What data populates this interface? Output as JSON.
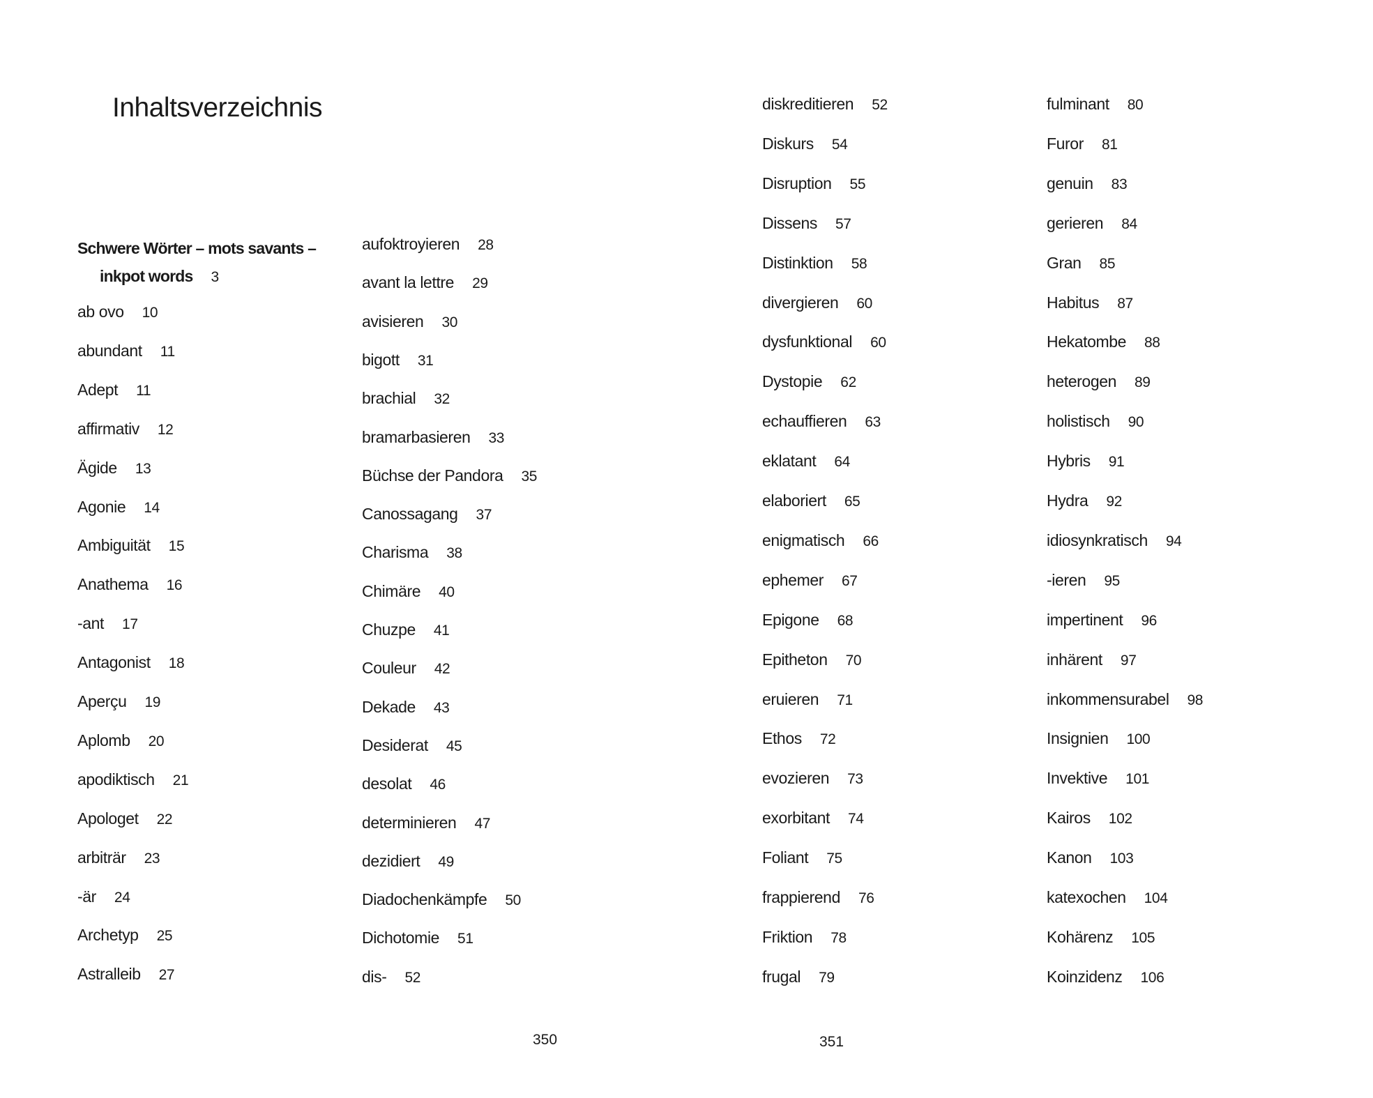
{
  "title": "Inhaltsverzeichnis",
  "heading": {
    "line1": "Schwere Wörter – mots savants –",
    "line2": "inkpot words",
    "page": "3"
  },
  "columns": [
    [
      [
        "ab ovo",
        "10"
      ],
      [
        "abundant",
        "11"
      ],
      [
        "Adept",
        "11"
      ],
      [
        "affirmativ",
        "12"
      ],
      [
        "Ägide",
        "13"
      ],
      [
        "Agonie",
        "14"
      ],
      [
        "Ambiguität",
        "15"
      ],
      [
        "Anathema",
        "16"
      ],
      [
        "-ant",
        "17"
      ],
      [
        "Antagonist",
        "18"
      ],
      [
        "Aperçu",
        "19"
      ],
      [
        "Aplomb",
        "20"
      ],
      [
        "apodiktisch",
        "21"
      ],
      [
        "Apologet",
        "22"
      ],
      [
        "arbiträr",
        "23"
      ],
      [
        "-är",
        "24"
      ],
      [
        "Archetyp",
        "25"
      ],
      [
        "Astralleib",
        "27"
      ]
    ],
    [
      [
        "aufoktroyieren",
        "28"
      ],
      [
        "avant la lettre",
        "29"
      ],
      [
        "avisieren",
        "30"
      ],
      [
        "bigott",
        "31"
      ],
      [
        "brachial",
        "32"
      ],
      [
        "bramarbasieren",
        "33"
      ],
      [
        "Büchse der Pandora",
        "35"
      ],
      [
        "Canossagang",
        "37"
      ],
      [
        "Charisma",
        "38"
      ],
      [
        "Chimäre",
        "40"
      ],
      [
        "Chuzpe",
        "41"
      ],
      [
        "Couleur",
        "42"
      ],
      [
        "Dekade",
        "43"
      ],
      [
        "Desiderat",
        "45"
      ],
      [
        "desolat",
        "46"
      ],
      [
        "determinieren",
        "47"
      ],
      [
        "dezidiert",
        "49"
      ],
      [
        "Diadochenkämpfe",
        "50"
      ],
      [
        "Dichotomie",
        "51"
      ],
      [
        "dis-",
        "52"
      ]
    ],
    [
      [
        "diskreditieren",
        "52"
      ],
      [
        "Diskurs",
        "54"
      ],
      [
        "Disruption",
        "55"
      ],
      [
        "Dissens",
        "57"
      ],
      [
        "Distinktion",
        "58"
      ],
      [
        "divergieren",
        "60"
      ],
      [
        "dysfunktional",
        "60"
      ],
      [
        "Dystopie",
        "62"
      ],
      [
        "echauffieren",
        "63"
      ],
      [
        "eklatant",
        "64"
      ],
      [
        "elaboriert",
        "65"
      ],
      [
        "enigmatisch",
        "66"
      ],
      [
        "ephemer",
        "67"
      ],
      [
        "Epigone",
        "68"
      ],
      [
        "Epitheton",
        "70"
      ],
      [
        "eruieren",
        "71"
      ],
      [
        "Ethos",
        "72"
      ],
      [
        "evozieren",
        "73"
      ],
      [
        "exorbitant",
        "74"
      ],
      [
        "Foliant",
        "75"
      ],
      [
        "frappierend",
        "76"
      ],
      [
        "Friktion",
        "78"
      ],
      [
        "frugal",
        "79"
      ]
    ],
    [
      [
        "fulminant",
        "80"
      ],
      [
        "Furor",
        "81"
      ],
      [
        "genuin",
        "83"
      ],
      [
        "gerieren",
        "84"
      ],
      [
        "Gran",
        "85"
      ],
      [
        "Habitus",
        "87"
      ],
      [
        "Hekatombe",
        "88"
      ],
      [
        "heterogen",
        "89"
      ],
      [
        "holistisch",
        "90"
      ],
      [
        "Hybris",
        "91"
      ],
      [
        "Hydra",
        "92"
      ],
      [
        "idiosynkratisch",
        "94"
      ],
      [
        "-ieren",
        "95"
      ],
      [
        "impertinent",
        "96"
      ],
      [
        "inhärent",
        "97"
      ],
      [
        "inkommensurabel",
        "98"
      ],
      [
        "Insignien",
        "100"
      ],
      [
        "Invektive",
        "101"
      ],
      [
        "Kairos",
        "102"
      ],
      [
        "Kanon",
        "103"
      ],
      [
        "katexochen",
        "104"
      ],
      [
        "Kohärenz",
        "105"
      ],
      [
        "Koinzidenz",
        "106"
      ]
    ]
  ],
  "page_numbers": {
    "left": "350",
    "right": "351"
  }
}
